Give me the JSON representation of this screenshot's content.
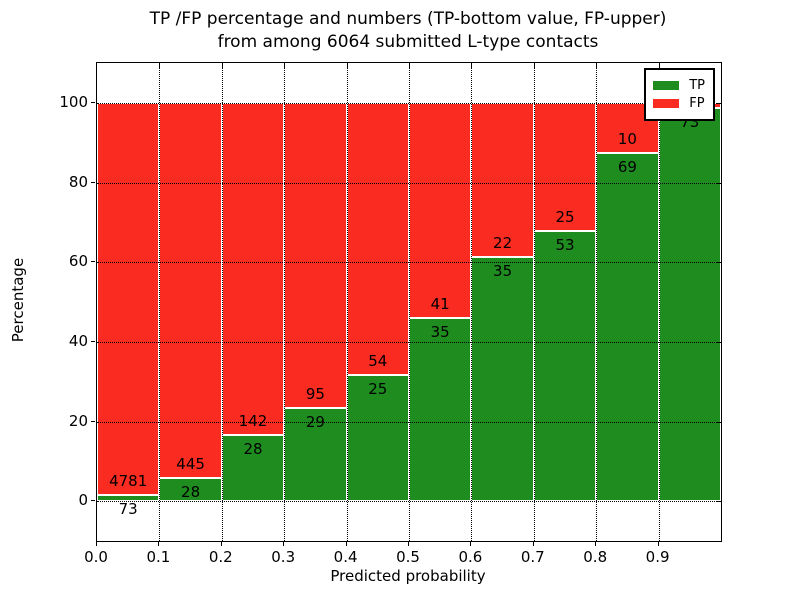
{
  "figure": {
    "title_line1": "TP /FP percentage and numbers (TP-bottom value, FP-upper)",
    "title_line2": "from among 6064 submitted L-type contacts"
  },
  "chart_data": {
    "type": "bar",
    "subtype": "stacked-100-percent",
    "title": "TP /FP percentage and numbers (TP-bottom value, FP-upper) from among 6064 submitted L-type contacts",
    "xlabel": "Predicted probability",
    "ylabel": "Percentage",
    "xlim": [
      0.0,
      1.0
    ],
    "ylim": [
      -10,
      110
    ],
    "xtick_labels": [
      "0.0",
      "0.1",
      "0.2",
      "0.3",
      "0.4",
      "0.5",
      "0.6",
      "0.7",
      "0.8",
      "0.9"
    ],
    "ytick_values": [
      0,
      20,
      40,
      60,
      80,
      100
    ],
    "grid_style": "dotted",
    "colors": {
      "tp": "#1f8c1f",
      "fp": "#fa2b20",
      "bar_edge": "#ffffff",
      "axes": "#000000"
    },
    "legend": {
      "position": "upper right",
      "entries": [
        {
          "label": "TP",
          "color_key": "tp"
        },
        {
          "label": "FP",
          "color_key": "fp"
        }
      ]
    },
    "bins": [
      {
        "range": [
          0.0,
          0.1
        ],
        "tp_count": "73",
        "fp_count": "4781",
        "tp_pct": 1.5
      },
      {
        "range": [
          0.1,
          0.2
        ],
        "tp_count": "28",
        "fp_count": "445",
        "tp_pct": 5.9
      },
      {
        "range": [
          0.2,
          0.3
        ],
        "tp_count": "28",
        "fp_count": "142",
        "tp_pct": 16.5
      },
      {
        "range": [
          0.3,
          0.4
        ],
        "tp_count": "29",
        "fp_count": "95",
        "tp_pct": 23.4
      },
      {
        "range": [
          0.4,
          0.5
        ],
        "tp_count": "25",
        "fp_count": "54",
        "tp_pct": 31.6
      },
      {
        "range": [
          0.5,
          0.6
        ],
        "tp_count": "35",
        "fp_count": "41",
        "tp_pct": 46.1
      },
      {
        "range": [
          0.6,
          0.7
        ],
        "tp_count": "35",
        "fp_count": "22",
        "tp_pct": 61.4
      },
      {
        "range": [
          0.7,
          0.8
        ],
        "tp_count": "53",
        "fp_count": "25",
        "tp_pct": 67.9
      },
      {
        "range": [
          0.8,
          0.9
        ],
        "tp_count": "69",
        "fp_count": "10",
        "tp_pct": 87.3
      },
      {
        "range": [
          0.9,
          1.0
        ],
        "tp_count": "73",
        "fp_count": "",
        "tp_pct": 98.6
      }
    ]
  }
}
